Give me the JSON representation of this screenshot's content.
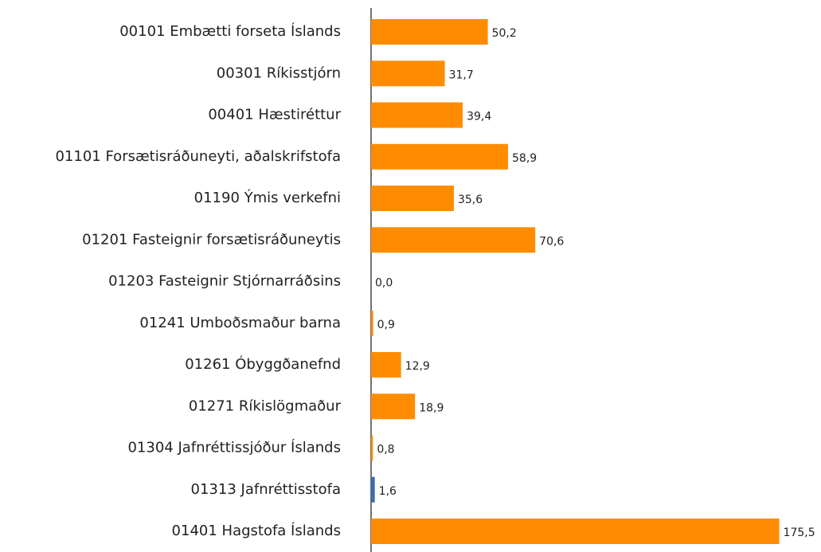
{
  "chart_data": {
    "type": "bar",
    "orientation": "horizontal",
    "categories": [
      "00101 Embætti forseta Íslands",
      "00301 Ríkisstjórn",
      "00401 Hæstiréttur",
      "01101 Forsætisráðuneyti, aðalskrifstofa",
      "01190 Ýmis verkefni",
      "01201 Fasteignir forsætisráðuneytis",
      "01203 Fasteignir Stjórnarráðsins",
      "01241 Umboðsmaður barna",
      "01261 Óbyggðanefnd",
      "01271 Ríkislögmaður",
      "01304 Jafnréttissjóður Íslands",
      "01313 Jafnréttisstofa",
      "01401 Hagstofa Íslands"
    ],
    "values": [
      50.2,
      31.7,
      39.4,
      58.9,
      35.6,
      70.6,
      0.0,
      0.9,
      12.9,
      18.9,
      0.8,
      1.6,
      175.5
    ],
    "value_labels": [
      "50,2",
      "31,7",
      "39,4",
      "58,9",
      "35,6",
      "70,6",
      "0,0",
      "0,9",
      "12,9",
      "18,9",
      "0,8",
      "1,6",
      "175,5"
    ],
    "colors": [
      "#ff8c00",
      "#ff8c00",
      "#ff8c00",
      "#ff8c00",
      "#ff8c00",
      "#ff8c00",
      "#ff8c00",
      "#ff8c00",
      "#ff8c00",
      "#ff8c00",
      "#ff8c00",
      "#3b6fa8",
      "#ff8c00"
    ],
    "xlim": [
      0,
      176
    ]
  }
}
